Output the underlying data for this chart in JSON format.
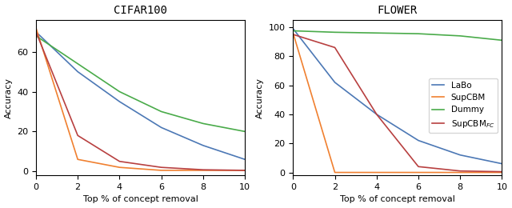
{
  "cifar100": {
    "title": "CIFAR100",
    "x": [
      0,
      2,
      4,
      6,
      8,
      10
    ],
    "LaBo": [
      70,
      50,
      35,
      22,
      13,
      6
    ],
    "SupCBM": [
      72,
      6,
      2,
      0.5,
      0.5,
      0.5
    ],
    "Dummy": [
      68,
      54,
      40,
      30,
      24,
      20
    ],
    "SupCBMfc": [
      70,
      18,
      5,
      2,
      0.8,
      0.5
    ]
  },
  "flower": {
    "title": "FLOWER",
    "x": [
      0,
      2,
      4,
      6,
      8,
      10
    ],
    "LaBo": [
      99,
      62,
      40,
      22,
      12,
      6
    ],
    "SupCBM": [
      96,
      0,
      0,
      0,
      0,
      0
    ],
    "Dummy": [
      97.5,
      96.5,
      96,
      95.5,
      94,
      91
    ],
    "SupCBMfc": [
      95,
      86,
      40,
      4,
      1,
      0.5
    ]
  },
  "colors": {
    "LaBo": "#4c78b5",
    "SupCBM": "#f08030",
    "Dummy": "#4aab4a",
    "SupCBMfc": "#b84040"
  },
  "xlabel": "Top % of concept removal",
  "ylabel": "Accuracy",
  "cifar100_yticks": [
    0,
    20,
    40,
    60
  ],
  "flower_yticks": [
    0,
    20,
    40,
    60,
    80,
    100
  ],
  "xticks": [
    0,
    2,
    4,
    6,
    8,
    10
  ]
}
